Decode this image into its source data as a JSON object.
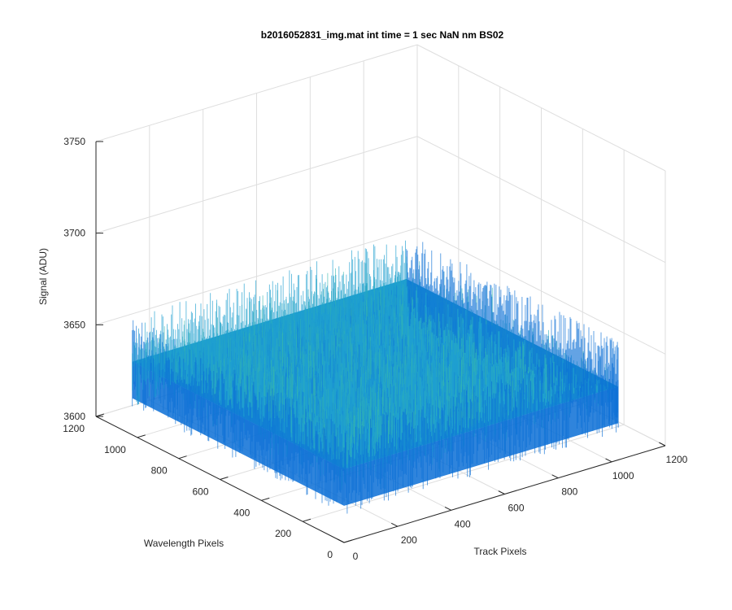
{
  "chart_data": {
    "type": "surface",
    "title": "b2016052831_img.mat int time = 1 sec  NaN nm BS02",
    "xlabel": "Track Pixels",
    "ylabel": "Wavelength Pixels",
    "zlabel": "Signal (ADU)",
    "xlim": [
      0,
      1200
    ],
    "ylim": [
      0,
      1200
    ],
    "zlim": [
      3600,
      3750
    ],
    "x_ticks": [
      "0",
      "200",
      "400",
      "600",
      "800",
      "1000",
      "1200"
    ],
    "y_ticks": [
      "0",
      "200",
      "400",
      "600",
      "800",
      "1000",
      "1200"
    ],
    "z_ticks": [
      "3600",
      "3650",
      "3700",
      "3750"
    ],
    "x_data_range": [
      0,
      1024
    ],
    "y_data_range": [
      0,
      1024
    ],
    "z_mean": 3640,
    "z_noise_range": [
      3615,
      3665
    ],
    "grid": true,
    "colors": {
      "surface_low": "#0b6fd6",
      "surface_mid": "#1e9fd0",
      "surface_high": "#3cbfa0",
      "grid": "#dedede",
      "axis": "#262626"
    }
  }
}
